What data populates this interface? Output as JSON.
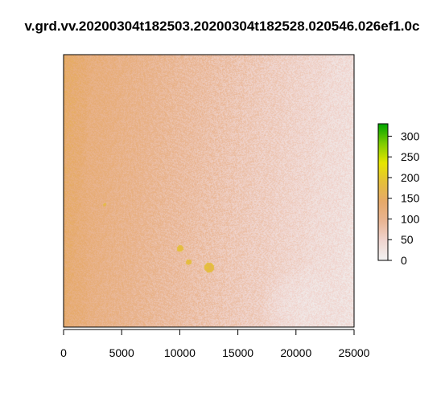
{
  "chart_data": {
    "type": "heatmap",
    "title": "v.grd.vv.20200304t182503.20200304t182528.020546.026ef1.0c",
    "xlabel": "",
    "ylabel": "",
    "x_ticks": [
      0,
      5000,
      10000,
      15000,
      20000,
      25000
    ],
    "x_tick_labels": [
      "0",
      "5000",
      "10000",
      "15000",
      "20000",
      "25000"
    ],
    "xlim": [
      0,
      25000
    ],
    "legend": {
      "placement": "right",
      "ticks": [
        0,
        50,
        100,
        150,
        200,
        250,
        300
      ],
      "tick_labels": [
        "0",
        "50",
        "100",
        "150",
        "200",
        "250",
        "300"
      ],
      "range": [
        0,
        330
      ],
      "palette": [
        "#F2F2F2",
        "#F0D5D0",
        "#E9B593",
        "#E6A96A",
        "#E5BF3C",
        "#E6E600",
        "#7FCC00",
        "#00A600"
      ]
    },
    "field_description": {
      "left_band_value": 140,
      "center_value": 100,
      "right_value": 55,
      "bottom_right_patch_value": 30,
      "hotspot_value": 180
    }
  }
}
